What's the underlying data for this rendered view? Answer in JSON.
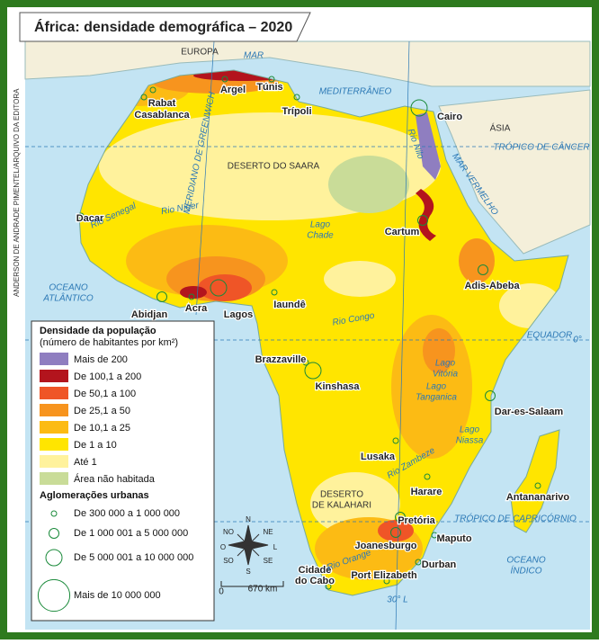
{
  "title": "África: densidade demográfica – 2020",
  "credit": "ANDERSON DE ANDRADE PIMENTEL/ARQUIVO DA EDITORA",
  "legend": {
    "density_title": "Densidade da população",
    "density_subtitle": "(número de habitantes por km²)",
    "density_items": [
      {
        "label": "Mais de 200",
        "color": "#8f7ec0"
      },
      {
        "label": "De 100,1 a 200",
        "color": "#b3141d"
      },
      {
        "label": "De 50,1 a 100",
        "color": "#ef5527"
      },
      {
        "label": "De 25,1 a 50",
        "color": "#f7941e"
      },
      {
        "label": "De 10,1 a 25",
        "color": "#fcbb14"
      },
      {
        "label": "De 1 a 10",
        "color": "#ffe500"
      },
      {
        "label": "Até 1",
        "color": "#fff29c"
      },
      {
        "label": "Área não habitada",
        "color": "#c9dc98"
      }
    ],
    "urban_title": "Aglomerações urbanas",
    "urban_items": [
      "De 300 000 a 1 000 000",
      "De 1 000 001 a 5 000 000",
      "De 5 000 001 a 10 000 000",
      "Mais de 10 000 000"
    ]
  },
  "cities": [
    "Rabat",
    "Casablanca",
    "Argel",
    "Túnis",
    "Trípoli",
    "Cairo",
    "Dacar",
    "Cartum",
    "Adis-Abeba",
    "Abidjan",
    "Acra",
    "Lagos",
    "Iaundê",
    "Brazzaville",
    "Kinshasa",
    "Dar-es-Salaam",
    "Lusaka",
    "Harare",
    "Antananarivo",
    "Pretória",
    "Joanesburgo",
    "Maputo",
    "Durban",
    [
      "Cidade",
      "do Cabo"
    ],
    "Port Elizabeth"
  ],
  "places": [
    "EUROPA",
    "MAR",
    "MEDITERRÂNEO",
    "ÁSIA",
    "TRÓPICO DE CÂNCER",
    "DESERTO DO SAARA",
    "MERIDIANO DE GREENWICH",
    "Rio Nilo",
    "MAR VERMELHO",
    "Rio Senegal",
    "Rio Níger",
    [
      "Lago",
      "Chade"
    ],
    [
      "OCEANO",
      "ATLÂNTICO"
    ],
    "EQUADOR",
    "0°",
    "Rio Congo",
    [
      "Lago",
      "Vitória"
    ],
    [
      "Lago",
      "Tanganica"
    ],
    [
      "Lago",
      "Niassa"
    ],
    "Rio Zambeze",
    [
      "DESERTO",
      "DE KALAHARI"
    ],
    "TRÓPICO DE CAPRICÓRNIO",
    [
      "OCEANO",
      "ÍNDICO"
    ],
    "Rio Orange",
    "30° L"
  ],
  "compass": [
    "N",
    "NE",
    "L",
    "SE",
    "S",
    "SO",
    "O",
    "NO"
  ],
  "scale": {
    "start": "0",
    "end": "670 km"
  }
}
